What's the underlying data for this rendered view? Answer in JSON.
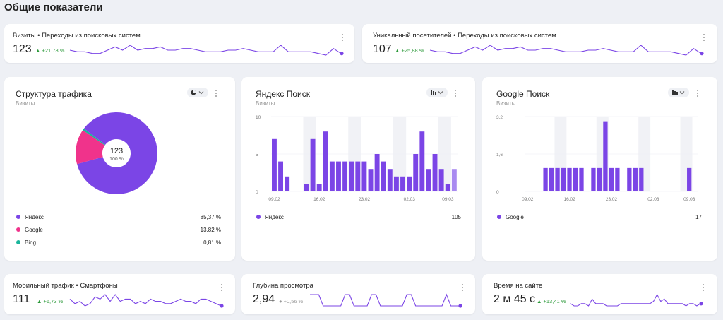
{
  "page_title": "Общие показатели",
  "colors": {
    "accent": "#7b45e6",
    "google": "#f0338b",
    "bing": "#1ab59b",
    "up": "#2d9a3b"
  },
  "kpi_top": [
    {
      "title": "Визиты • Переходы из поисковых систем",
      "value": "123",
      "delta": "▲ +21,78 %",
      "series": [
        6,
        5,
        5,
        4,
        4,
        6,
        8,
        6,
        9,
        6,
        7,
        7,
        8,
        6,
        6,
        7,
        7,
        6,
        5,
        5,
        5,
        6,
        6,
        7,
        6,
        5,
        5,
        5,
        9,
        5,
        5,
        5,
        5,
        4,
        3,
        7,
        4
      ]
    },
    {
      "title": "Уникальный посетителей • Переходы из поисковых систем",
      "value": "107",
      "delta": "▲ +25,88 %",
      "series": [
        6,
        5,
        5,
        4,
        4,
        6,
        8,
        6,
        9,
        6,
        7,
        7,
        8,
        6,
        6,
        7,
        7,
        6,
        5,
        5,
        5,
        6,
        6,
        7,
        6,
        5,
        5,
        5,
        9,
        5,
        5,
        5,
        5,
        4,
        3,
        7,
        4
      ]
    }
  ],
  "traffic": {
    "title": "Структура трафика",
    "subtitle": "Визиты",
    "total": "123",
    "total_pct": "100 %",
    "slices": [
      {
        "name": "Яндекс",
        "pct": "85,37 %",
        "value": 85.37,
        "color": "#7b45e6"
      },
      {
        "name": "Google",
        "pct": "13,82 %",
        "value": 13.82,
        "color": "#f0338b"
      },
      {
        "name": "Bing",
        "pct": "0,81 %",
        "value": 0.81,
        "color": "#1ab59b"
      }
    ]
  },
  "yandex": {
    "title": "Яндекс Поиск",
    "subtitle": "Визиты",
    "legend_name": "Яндекс",
    "legend_total": "105",
    "yticks": [
      "10",
      "5",
      "0"
    ],
    "xticks": [
      "09.02",
      "16.02",
      "23.02",
      "02.03",
      "09.03"
    ]
  },
  "google": {
    "title": "Google Поиск",
    "subtitle": "Визиты",
    "legend_name": "Google",
    "legend_total": "17",
    "yticks": [
      "3,2",
      "1,6",
      "0"
    ],
    "xticks": [
      "09.02",
      "16.02",
      "23.02",
      "02.03",
      "09.03"
    ]
  },
  "chart_data": [
    {
      "type": "bar",
      "title": "Яндекс Поиск",
      "ylabel": "Визиты",
      "ylim": [
        0,
        10
      ],
      "categories": [
        "09.02",
        "10.02",
        "11.02",
        "12.02",
        "13.02",
        "14.02",
        "15.02",
        "16.02",
        "17.02",
        "18.02",
        "19.02",
        "20.02",
        "21.02",
        "22.02",
        "23.02",
        "24.02",
        "25.02",
        "26.02",
        "27.02",
        "28.02",
        "01.03",
        "02.03",
        "03.03",
        "04.03",
        "05.03",
        "06.03",
        "07.03",
        "08.03",
        "09.03"
      ],
      "series": [
        {
          "name": "Яндекс",
          "values": [
            7,
            4,
            2,
            0,
            0,
            1,
            7,
            1,
            8,
            4,
            4,
            4,
            4,
            4,
            4,
            3,
            5,
            4,
            3,
            2,
            2,
            2,
            5,
            8,
            3,
            5,
            3,
            1,
            3
          ]
        }
      ]
    },
    {
      "type": "bar",
      "title": "Google Поиск",
      "ylabel": "Визиты",
      "ylim": [
        0,
        3.2
      ],
      "categories": [
        "09.02",
        "10.02",
        "11.02",
        "12.02",
        "13.02",
        "14.02",
        "15.02",
        "16.02",
        "17.02",
        "18.02",
        "19.02",
        "20.02",
        "21.02",
        "22.02",
        "23.02",
        "24.02",
        "25.02",
        "26.02",
        "27.02",
        "28.02",
        "01.03",
        "02.03",
        "03.03",
        "04.03",
        "05.03",
        "06.03",
        "07.03",
        "08.03",
        "09.03"
      ],
      "series": [
        {
          "name": "Google",
          "values": [
            0,
            0,
            0,
            1,
            1,
            1,
            1,
            1,
            1,
            1,
            0,
            1,
            1,
            3,
            1,
            1,
            0,
            1,
            1,
            1,
            0,
            0,
            0,
            0,
            0,
            0,
            0,
            1,
            0
          ]
        }
      ]
    },
    {
      "type": "pie",
      "title": "Структура трафика",
      "categories": [
        "Яндекс",
        "Google",
        "Bing"
      ],
      "values": [
        85.37,
        13.82,
        0.81
      ]
    }
  ],
  "kpi_bottom": [
    {
      "title": "Мобильный трафик • Смартфоны",
      "value": "111",
      "delta": "▲ +6,73 %",
      "delta_type": "up",
      "series": [
        6,
        4,
        5,
        3,
        4,
        7,
        6,
        8,
        5,
        8,
        5,
        6,
        6,
        4,
        5,
        4,
        6,
        5,
        5,
        4,
        4,
        5,
        6,
        5,
        5,
        4,
        6,
        6,
        5,
        4,
        3
      ]
    },
    {
      "title": "Глубина просмотра",
      "value": "2,94",
      "delta": "● +0,56 %",
      "delta_type": "neu",
      "series": [
        5,
        5,
        5,
        4,
        4,
        4,
        4,
        4,
        5,
        5,
        4,
        4,
        4,
        4,
        5,
        5,
        4,
        4,
        4,
        4,
        4,
        4,
        5,
        5,
        4,
        4,
        4,
        4,
        4,
        4,
        4,
        5,
        4,
        4,
        4
      ]
    },
    {
      "title": "Время на сайте",
      "value": "2 м 45 с",
      "delta": "▲ +13,41 %",
      "delta_type": "up",
      "series": [
        4,
        3,
        3,
        4,
        4,
        3,
        6,
        4,
        4,
        4,
        3,
        3,
        3,
        3,
        4,
        4,
        4,
        4,
        4,
        4,
        4,
        4,
        4,
        5,
        8,
        5,
        6,
        4,
        4,
        4,
        4,
        4,
        3,
        4,
        4,
        3,
        4
      ]
    }
  ]
}
